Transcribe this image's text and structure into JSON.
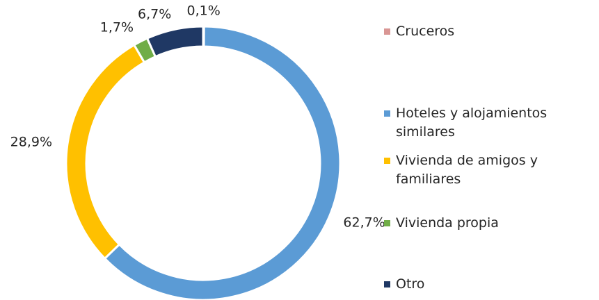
{
  "chart_data": {
    "type": "donut",
    "categories": [
      "Cruceros",
      "Hoteles y alojamientos similares",
      "Vivienda de amigos y familiares",
      "Vivienda propia",
      "Otro"
    ],
    "values": [
      0.1,
      62.7,
      28.9,
      1.7,
      6.7
    ],
    "value_labels": [
      "0,1%",
      "62,7%",
      "28,9%",
      "1,7%",
      "6,7%"
    ],
    "colors": [
      "#d99694",
      "#5b9bd5",
      "#ffc000",
      "#70ad47",
      "#1f3864"
    ],
    "legend": "right"
  }
}
